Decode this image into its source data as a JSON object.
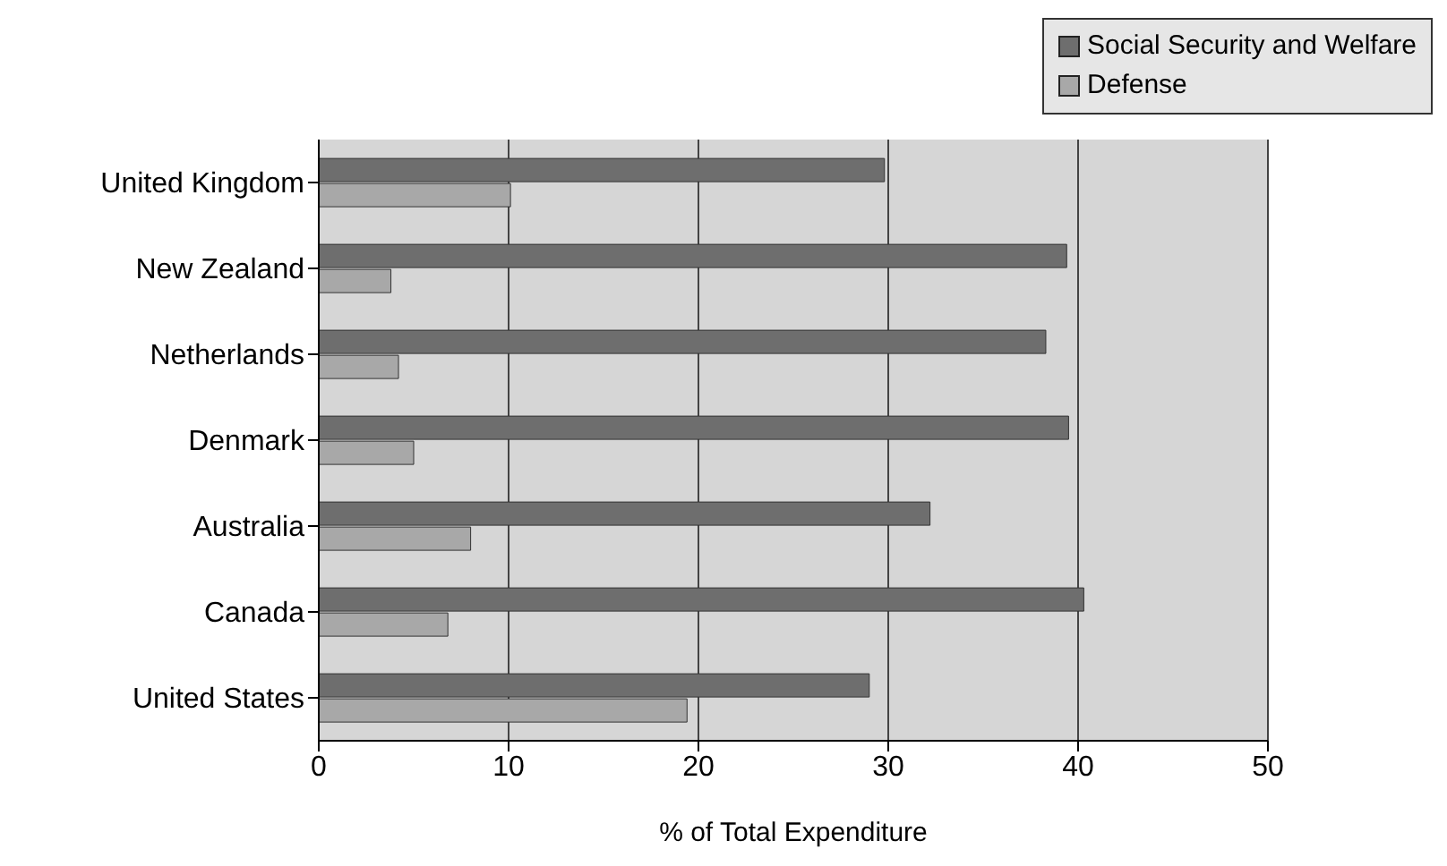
{
  "chart_data": {
    "type": "bar",
    "orientation": "horizontal",
    "xlabel": "% of Total Expenditure",
    "categories": [
      "United Kingdom",
      "New Zealand",
      "Netherlands",
      "Denmark",
      "Australia",
      "Canada",
      "United States"
    ],
    "series": [
      {
        "name": "Social Security and Welfare",
        "color": "#6e6e6e",
        "values": [
          29.8,
          39.4,
          38.3,
          39.5,
          32.2,
          40.3,
          29.0
        ]
      },
      {
        "name": "Defense",
        "color": "#a8a8a8",
        "values": [
          10.1,
          3.8,
          4.2,
          5.0,
          8.0,
          6.8,
          19.4
        ]
      }
    ],
    "xlim": [
      0,
      50
    ],
    "xticks": [
      0,
      10,
      20,
      30,
      40,
      50
    ],
    "grid": "x",
    "legend": "top right"
  }
}
